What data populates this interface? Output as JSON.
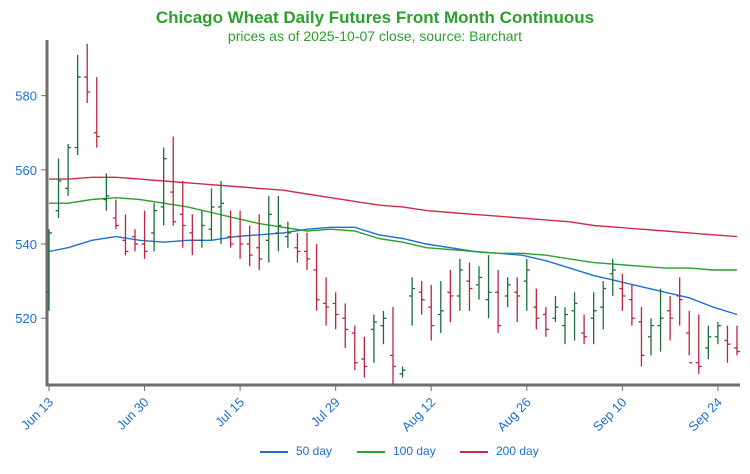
{
  "title": "Chicago Wheat Daily Futures Front Month Continuous",
  "subtitle": "prices as of 2025-10-07 close, source: Barchart",
  "colors": {
    "up": "#1a6e3c",
    "down": "#c0243c",
    "ma50": "#1f6fd1",
    "ma100": "#2aa12a",
    "ma200": "#d42a4a",
    "axis": "#6e6e6e",
    "tick_text": "#1f6fd1"
  },
  "chart_data": {
    "type": "ohlc",
    "xlabel": "",
    "ylabel": "",
    "ylim": [
      502,
      595
    ],
    "grid": false,
    "legend_position": "bottom",
    "x_ticks": [
      "Jun 13",
      "Jun 30",
      "Jul 15",
      "Jul 29",
      "Aug 12",
      "Aug 26",
      "Sep 10",
      "Sep 24"
    ],
    "y_ticks": [
      520,
      540,
      560,
      580
    ],
    "series": [
      {
        "name": "50 day",
        "points": [
          [
            1,
            538
          ],
          [
            5,
            539
          ],
          [
            10,
            541
          ],
          [
            15,
            542
          ],
          [
            20,
            541
          ],
          [
            25,
            540.5
          ],
          [
            30,
            541
          ],
          [
            35,
            541
          ],
          [
            40,
            542
          ],
          [
            45,
            542.5
          ],
          [
            50,
            543
          ],
          [
            55,
            544
          ],
          [
            60,
            544.5
          ],
          [
            65,
            544.5
          ],
          [
            70,
            542.5
          ],
          [
            75,
            541.5
          ],
          [
            80,
            540
          ],
          [
            85,
            539
          ],
          [
            90,
            538
          ],
          [
            95,
            537.5
          ],
          [
            100,
            537
          ],
          [
            105,
            535.5
          ],
          [
            110,
            533.5
          ],
          [
            115,
            531.5
          ],
          [
            120,
            530
          ],
          [
            125,
            528.5
          ],
          [
            130,
            527
          ],
          [
            135,
            525.5
          ],
          [
            140,
            523
          ],
          [
            145,
            521
          ]
        ]
      },
      {
        "name": "100 day",
        "points": [
          [
            1,
            551
          ],
          [
            5,
            551
          ],
          [
            10,
            552
          ],
          [
            15,
            552.5
          ],
          [
            20,
            552
          ],
          [
            25,
            551
          ],
          [
            30,
            550
          ],
          [
            35,
            548.5
          ],
          [
            40,
            547
          ],
          [
            45,
            545.5
          ],
          [
            50,
            544.5
          ],
          [
            55,
            543.5
          ],
          [
            60,
            544
          ],
          [
            65,
            543.5
          ],
          [
            70,
            541.5
          ],
          [
            75,
            540.5
          ],
          [
            80,
            539
          ],
          [
            85,
            538.5
          ],
          [
            90,
            538
          ],
          [
            95,
            537.5
          ],
          [
            100,
            537.5
          ],
          [
            105,
            537
          ],
          [
            110,
            536
          ],
          [
            115,
            535
          ],
          [
            120,
            534.5
          ],
          [
            125,
            534
          ],
          [
            130,
            533.5
          ],
          [
            135,
            533.5
          ],
          [
            140,
            533
          ],
          [
            145,
            533
          ]
        ]
      },
      {
        "name": "200 day",
        "points": [
          [
            1,
            557.5
          ],
          [
            5,
            557.5
          ],
          [
            10,
            558
          ],
          [
            15,
            558
          ],
          [
            20,
            557.5
          ],
          [
            25,
            557
          ],
          [
            30,
            556.5
          ],
          [
            35,
            556
          ],
          [
            40,
            555.5
          ],
          [
            45,
            555
          ],
          [
            50,
            554.5
          ],
          [
            55,
            553.5
          ],
          [
            60,
            552.5
          ],
          [
            65,
            551.5
          ],
          [
            70,
            550.5
          ],
          [
            75,
            550
          ],
          [
            80,
            549
          ],
          [
            85,
            548.5
          ],
          [
            90,
            548
          ],
          [
            95,
            547.5
          ],
          [
            100,
            547
          ],
          [
            105,
            546.5
          ],
          [
            110,
            546
          ],
          [
            115,
            545
          ],
          [
            120,
            544.5
          ],
          [
            125,
            544
          ],
          [
            130,
            543.5
          ],
          [
            135,
            543
          ],
          [
            140,
            542.5
          ],
          [
            145,
            542
          ]
        ]
      }
    ],
    "ohlc": [
      [
        522,
        544,
        527,
        543
      ],
      [
        547,
        563,
        549,
        557
      ],
      [
        553,
        567,
        555,
        566
      ],
      [
        564,
        591,
        566,
        585
      ],
      [
        578,
        594,
        585,
        581
      ],
      [
        566,
        585,
        570,
        569
      ],
      [
        549,
        559,
        552,
        553
      ],
      [
        544,
        552,
        547,
        545
      ],
      [
        537,
        548,
        541,
        538
      ],
      [
        538,
        544,
        542,
        540
      ],
      [
        536,
        549,
        540,
        538
      ],
      [
        538,
        551,
        543,
        549
      ],
      [
        545,
        566,
        550,
        563
      ],
      [
        545,
        569,
        554,
        546
      ],
      [
        539,
        557,
        548,
        545
      ],
      [
        537,
        548,
        543,
        541
      ],
      [
        539,
        549,
        541,
        545
      ],
      [
        541,
        555,
        544,
        550
      ],
      [
        540,
        557,
        550,
        551
      ],
      [
        539,
        549,
        542,
        540
      ],
      [
        536,
        549,
        542,
        540
      ],
      [
        534,
        545,
        540,
        537
      ],
      [
        533,
        548,
        539,
        536
      ],
      [
        535,
        553,
        541,
        548
      ],
      [
        538,
        553,
        543,
        545
      ],
      [
        539,
        546,
        542,
        543
      ],
      [
        535,
        543,
        539,
        538
      ],
      [
        533,
        543,
        538,
        536
      ],
      [
        522,
        540,
        533,
        525
      ],
      [
        518,
        531,
        524,
        523
      ],
      [
        517,
        527,
        524,
        521
      ],
      [
        512,
        524,
        520,
        517
      ],
      [
        506,
        518,
        516,
        508
      ],
      [
        504,
        515,
        509,
        507
      ],
      [
        508,
        521,
        517,
        519
      ],
      [
        513,
        522,
        518,
        520
      ],
      [
        502,
        523,
        510,
        507
      ],
      [
        504,
        507,
        505,
        506
      ],
      [
        518,
        531,
        526,
        528
      ],
      [
        521,
        530,
        527,
        525
      ],
      [
        514,
        529,
        523,
        518
      ],
      [
        516,
        530,
        521,
        522
      ],
      [
        519,
        533,
        527,
        526
      ],
      [
        522,
        536,
        526,
        533
      ],
      [
        522,
        535,
        530,
        528
      ],
      [
        525,
        534,
        529,
        531
      ],
      [
        520,
        537,
        525,
        527
      ],
      [
        516,
        533,
        527,
        518
      ],
      [
        523,
        531,
        526,
        529
      ],
      [
        519,
        531,
        527,
        526
      ],
      [
        522,
        536,
        530,
        533
      ],
      [
        517,
        528,
        523,
        520
      ],
      [
        515,
        523,
        521,
        517
      ],
      [
        519,
        526,
        520,
        523
      ],
      [
        513,
        523,
        518,
        521
      ],
      [
        514,
        527,
        522,
        524
      ],
      [
        513,
        521,
        516,
        515
      ],
      [
        513,
        527,
        520,
        522
      ],
      [
        517,
        530,
        523,
        528
      ],
      [
        526,
        536,
        532,
        533
      ],
      [
        522,
        532,
        528,
        526
      ],
      [
        518,
        529,
        525,
        520
      ],
      [
        507,
        523,
        519,
        510
      ],
      [
        510,
        520,
        515,
        518
      ],
      [
        511,
        528,
        518,
        520
      ],
      [
        514,
        526,
        522,
        520
      ],
      [
        518,
        531,
        526,
        525
      ],
      [
        510,
        522,
        516,
        508
      ],
      [
        505,
        521,
        508,
        507
      ],
      [
        509,
        518,
        512,
        515
      ],
      [
        513,
        519,
        515,
        518
      ],
      [
        508,
        518,
        514,
        513
      ],
      [
        510,
        518,
        512,
        511
      ]
    ]
  },
  "legend": [
    {
      "label": "50 day",
      "color_key": "ma50"
    },
    {
      "label": "100 day",
      "color_key": "ma100"
    },
    {
      "label": "200 day",
      "color_key": "ma200"
    }
  ]
}
